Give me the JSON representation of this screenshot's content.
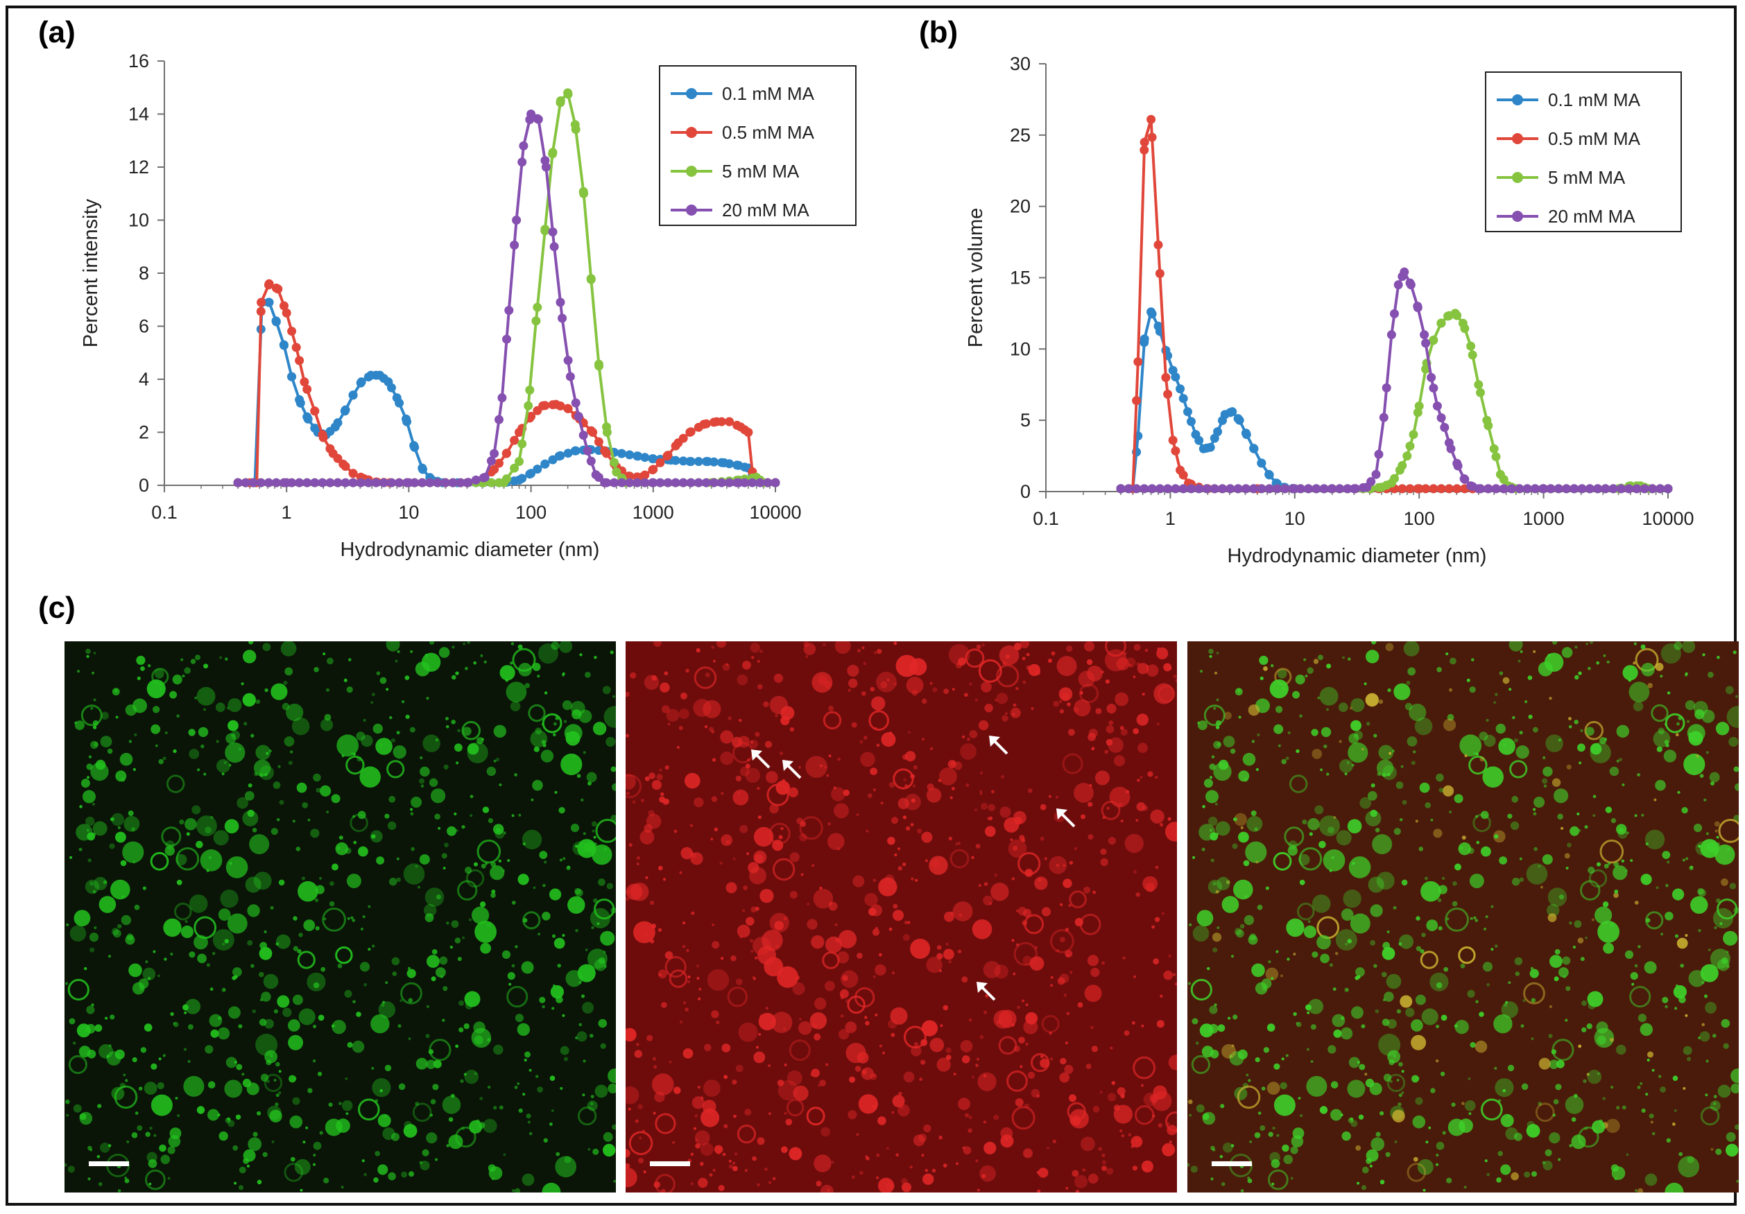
{
  "figure": {
    "panel_labels": {
      "a": "(a)",
      "b": "(b)",
      "c": "(c)"
    },
    "colors": {
      "blue": "#2E86C9",
      "red": "#E0473A",
      "green": "#86C440",
      "purple": "#8550B0",
      "axis": "#707070",
      "text": "#222222"
    }
  },
  "chart_data": [
    {
      "id": "a",
      "type": "line",
      "x_scale": "log",
      "xlabel": "Hydrodynamic diameter (nm)",
      "ylabel": "Percent intensity",
      "xlim": [
        0.1,
        10000
      ],
      "ylim": [
        0,
        16
      ],
      "x_ticks": [
        0.1,
        1,
        10,
        100,
        1000,
        10000
      ],
      "x_tick_labels": [
        "0.1",
        "1",
        "10",
        "100",
        "1000",
        "10000"
      ],
      "y_ticks": [
        0,
        2,
        4,
        6,
        8,
        10,
        12,
        14,
        16
      ],
      "y_tick_labels": [
        "0",
        "2",
        "4",
        "6",
        "8",
        "10",
        "12",
        "14",
        "16"
      ],
      "legend": [
        "0.1 mM MA",
        "0.5 mM MA",
        "5 mM MA",
        "20 mM MA"
      ],
      "legend_position": "top-right",
      "series": [
        {
          "name": "0.1 mM MA",
          "color": "#2E86C9",
          "points": [
            [
              0.4,
              0.1
            ],
            [
              0.55,
              0.1
            ],
            [
              0.63,
              6.9
            ],
            [
              0.72,
              6.9
            ],
            [
              0.82,
              6.2
            ],
            [
              0.95,
              5.3
            ],
            [
              1.1,
              4.1
            ],
            [
              1.3,
              3.1
            ],
            [
              1.5,
              2.5
            ],
            [
              1.8,
              2.0
            ],
            [
              2.1,
              1.9
            ],
            [
              2.5,
              2.2
            ],
            [
              3.0,
              2.8
            ],
            [
              3.5,
              3.4
            ],
            [
              4.1,
              3.9
            ],
            [
              4.9,
              4.15
            ],
            [
              5.8,
              4.15
            ],
            [
              6.8,
              3.9
            ],
            [
              8,
              3.3
            ],
            [
              9.5,
              2.5
            ],
            [
              11,
              1.5
            ],
            [
              13,
              0.6
            ],
            [
              15.5,
              0.2
            ],
            [
              19,
              0.1
            ],
            [
              25,
              0.1
            ],
            [
              40,
              0.1
            ],
            [
              60,
              0.1
            ],
            [
              80,
              0.2
            ],
            [
              100,
              0.45
            ],
            [
              130,
              0.8
            ],
            [
              170,
              1.1
            ],
            [
              230,
              1.3
            ],
            [
              300,
              1.35
            ],
            [
              400,
              1.3
            ],
            [
              550,
              1.2
            ],
            [
              750,
              1.1
            ],
            [
              1000,
              1.0
            ],
            [
              1400,
              0.95
            ],
            [
              2000,
              0.9
            ],
            [
              2800,
              0.9
            ],
            [
              3800,
              0.85
            ],
            [
              5000,
              0.75
            ],
            [
              6000,
              0.65
            ],
            [
              7000,
              0.15
            ],
            [
              8000,
              0.1
            ],
            [
              10000,
              0.1
            ]
          ]
        },
        {
          "name": "0.5 mM MA",
          "color": "#E0473A",
          "points": [
            [
              0.4,
              0.1
            ],
            [
              0.5,
              0.1
            ],
            [
              0.57,
              0.1
            ],
            [
              0.62,
              6.9
            ],
            [
              0.72,
              7.6
            ],
            [
              0.85,
              7.4
            ],
            [
              1.0,
              6.5
            ],
            [
              1.2,
              5.2
            ],
            [
              1.4,
              3.9
            ],
            [
              1.7,
              2.8
            ],
            [
              2.0,
              1.8
            ],
            [
              2.4,
              1.2
            ],
            [
              2.9,
              0.8
            ],
            [
              3.5,
              0.45
            ],
            [
              4.3,
              0.25
            ],
            [
              5.5,
              0.12
            ],
            [
              7,
              0.1
            ],
            [
              20,
              0.1
            ],
            [
              30,
              0.1
            ],
            [
              40,
              0.2
            ],
            [
              50,
              0.6
            ],
            [
              63,
              1.2
            ],
            [
              80,
              2.0
            ],
            [
              100,
              2.6
            ],
            [
              125,
              3.0
            ],
            [
              160,
              3.05
            ],
            [
              200,
              2.9
            ],
            [
              250,
              2.5
            ],
            [
              320,
              2.0
            ],
            [
              400,
              1.3
            ],
            [
              500,
              0.7
            ],
            [
              630,
              0.35
            ],
            [
              800,
              0.3
            ],
            [
              1000,
              0.6
            ],
            [
              1300,
              1.1
            ],
            [
              1600,
              1.6
            ],
            [
              2000,
              2.0
            ],
            [
              2600,
              2.3
            ],
            [
              3300,
              2.4
            ],
            [
              4200,
              2.4
            ],
            [
              5200,
              2.2
            ],
            [
              6000,
              2.0
            ],
            [
              6600,
              0.15
            ],
            [
              8000,
              0.1
            ],
            [
              10000,
              0.1
            ]
          ]
        },
        {
          "name": "5 mM MA",
          "color": "#86C440",
          "points": [
            [
              0.4,
              0.1
            ],
            [
              1,
              0.1
            ],
            [
              10,
              0.1
            ],
            [
              40,
              0.1
            ],
            [
              60,
              0.1
            ],
            [
              80,
              0.9
            ],
            [
              95,
              3.0
            ],
            [
              110,
              6.2
            ],
            [
              130,
              9.6
            ],
            [
              150,
              12.5
            ],
            [
              175,
              14.5
            ],
            [
              200,
              14.8
            ],
            [
              230,
              13.6
            ],
            [
              270,
              11.0
            ],
            [
              310,
              7.8
            ],
            [
              360,
              4.5
            ],
            [
              420,
              2.0
            ],
            [
              500,
              0.5
            ],
            [
              600,
              0.1
            ],
            [
              1000,
              0.1
            ],
            [
              3000,
              0.1
            ],
            [
              5000,
              0.2
            ],
            [
              7000,
              0.3
            ],
            [
              8000,
              0.1
            ],
            [
              10000,
              0.1
            ]
          ]
        },
        {
          "name": "20 mM MA",
          "color": "#8550B0",
          "points": [
            [
              0.4,
              0.1
            ],
            [
              1,
              0.1
            ],
            [
              10,
              0.1
            ],
            [
              30,
              0.1
            ],
            [
              42,
              0.3
            ],
            [
              50,
              1.2
            ],
            [
              58,
              3.3
            ],
            [
              66,
              6.6
            ],
            [
              76,
              10.0
            ],
            [
              87,
              12.8
            ],
            [
              100,
              14.0
            ],
            [
              115,
              13.8
            ],
            [
              133,
              12.0
            ],
            [
              155,
              9.0
            ],
            [
              180,
              6.3
            ],
            [
              210,
              4.1
            ],
            [
              245,
              2.6
            ],
            [
              290,
              1.3
            ],
            [
              340,
              0.4
            ],
            [
              400,
              0.1
            ],
            [
              1000,
              0.1
            ],
            [
              5000,
              0.1
            ],
            [
              10000,
              0.1
            ]
          ]
        }
      ]
    },
    {
      "id": "b",
      "type": "line",
      "x_scale": "log",
      "xlabel": "Hydrodynamic diameter (nm)",
      "ylabel": "Percent volume",
      "xlim": [
        0.1,
        10000
      ],
      "ylim": [
        0,
        30
      ],
      "x_ticks": [
        0.1,
        1,
        10,
        100,
        1000,
        10000
      ],
      "x_tick_labels": [
        "0.1",
        "1",
        "10",
        "100",
        "1000",
        "10000"
      ],
      "y_ticks": [
        0,
        5,
        10,
        15,
        20,
        25,
        30
      ],
      "y_tick_labels": [
        "0",
        "5",
        "10",
        "15",
        "20",
        "25",
        "30"
      ],
      "legend": [
        "0.1 mM MA",
        "0.5 mM MA",
        "5 mM MA",
        "20 mM MA"
      ],
      "legend_position": "top-right",
      "series": [
        {
          "name": "0.1 mM MA",
          "color": "#2E86C9",
          "points": [
            [
              0.4,
              0.2
            ],
            [
              0.5,
              0.2
            ],
            [
              0.55,
              3.9
            ],
            [
              0.62,
              10.7
            ],
            [
              0.7,
              12.6
            ],
            [
              0.8,
              11.6
            ],
            [
              0.92,
              9.9
            ],
            [
              1.05,
              8.5
            ],
            [
              1.2,
              7.2
            ],
            [
              1.38,
              5.6
            ],
            [
              1.6,
              4.0
            ],
            [
              1.85,
              3.0
            ],
            [
              2.1,
              3.1
            ],
            [
              2.4,
              4.2
            ],
            [
              2.75,
              5.4
            ],
            [
              3.15,
              5.6
            ],
            [
              3.6,
              5.0
            ],
            [
              4.1,
              4.0
            ],
            [
              4.7,
              3.0
            ],
            [
              5.4,
              2.0
            ],
            [
              6.2,
              1.2
            ],
            [
              7.1,
              0.6
            ],
            [
              8.2,
              0.3
            ],
            [
              10,
              0.2
            ],
            [
              20,
              0.2
            ],
            [
              100,
              0.2
            ],
            [
              1000,
              0.2
            ],
            [
              10000,
              0.2
            ]
          ]
        },
        {
          "name": "0.5 mM MA",
          "color": "#E0473A",
          "points": [
            [
              0.4,
              0.2
            ],
            [
              0.5,
              0.2
            ],
            [
              0.55,
              9.1
            ],
            [
              0.62,
              24.5
            ],
            [
              0.7,
              26.1
            ],
            [
              0.8,
              17.3
            ],
            [
              0.92,
              8.0
            ],
            [
              1.05,
              3.6
            ],
            [
              1.2,
              1.5
            ],
            [
              1.4,
              0.6
            ],
            [
              1.7,
              0.3
            ],
            [
              2.0,
              0.2
            ],
            [
              5,
              0.2
            ],
            [
              20,
              0.2
            ],
            [
              100,
              0.2
            ],
            [
              1000,
              0.2
            ],
            [
              10000,
              0.2
            ]
          ]
        },
        {
          "name": "5 mM MA",
          "color": "#86C440",
          "points": [
            [
              0.4,
              0.2
            ],
            [
              10,
              0.2
            ],
            [
              40,
              0.2
            ],
            [
              50,
              0.3
            ],
            [
              60,
              0.6
            ],
            [
              70,
              1.5
            ],
            [
              80,
              2.5
            ],
            [
              90,
              4.0
            ],
            [
              100,
              6.0
            ],
            [
              115,
              9.0
            ],
            [
              130,
              10.6
            ],
            [
              150,
              11.8
            ],
            [
              170,
              12.3
            ],
            [
              195,
              12.5
            ],
            [
              225,
              11.8
            ],
            [
              260,
              10.2
            ],
            [
              300,
              7.5
            ],
            [
              350,
              5.0
            ],
            [
              400,
              3.0
            ],
            [
              450,
              1.2
            ],
            [
              520,
              0.4
            ],
            [
              600,
              0.2
            ],
            [
              1000,
              0.2
            ],
            [
              4000,
              0.2
            ],
            [
              5000,
              0.4
            ],
            [
              6000,
              0.4
            ],
            [
              7000,
              0.2
            ],
            [
              10000,
              0.2
            ]
          ]
        },
        {
          "name": "20 mM MA",
          "color": "#8550B0",
          "points": [
            [
              0.4,
              0.2
            ],
            [
              10,
              0.2
            ],
            [
              30,
              0.2
            ],
            [
              38,
              0.3
            ],
            [
              45,
              1.2
            ],
            [
              52,
              5.2
            ],
            [
              60,
              11.0
            ],
            [
              68,
              14.5
            ],
            [
              76,
              15.4
            ],
            [
              86,
              14.5
            ],
            [
              97,
              13.0
            ],
            [
              110,
              11.0
            ],
            [
              125,
              8.0
            ],
            [
              140,
              6.0
            ],
            [
              160,
              4.5
            ],
            [
              180,
              3.0
            ],
            [
              205,
              1.8
            ],
            [
              230,
              0.9
            ],
            [
              260,
              0.4
            ],
            [
              300,
              0.2
            ],
            [
              1000,
              0.2
            ],
            [
              10000,
              0.2
            ]
          ]
        }
      ]
    }
  ],
  "microscopy": [
    {
      "channel": "green",
      "color": "#23C21E",
      "background": "#0A1407"
    },
    {
      "channel": "red",
      "color": "#E02626",
      "background": "#6E0C0C"
    },
    {
      "channel": "merged",
      "color": "#3ED22A",
      "background": "#4A1A0A"
    }
  ]
}
